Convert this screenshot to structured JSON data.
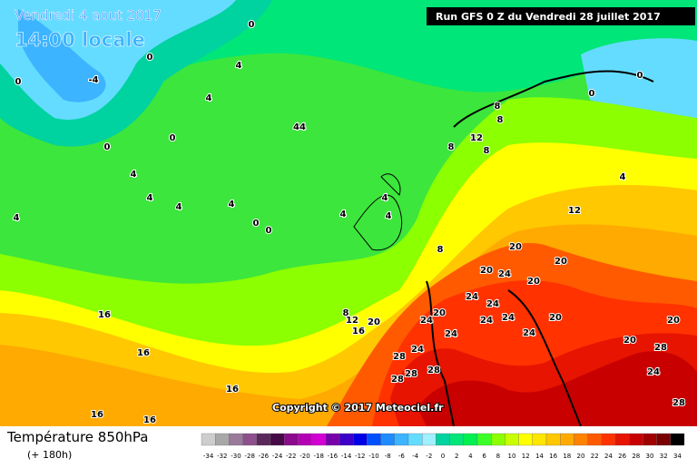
{
  "header": {
    "valid_date": "Vendredi 4 aout 2017",
    "local_time": "14:00 locale",
    "run": "Run GFS 0 Z du Vendredi 28 juillet 2017"
  },
  "copyright": "Copyright © 2017 Meteociel.fr",
  "footer": {
    "title": "Température 850hPa",
    "lead": "(+ 180h)"
  },
  "legend": {
    "values": [
      -34,
      -32,
      -30,
      -28,
      -26,
      -24,
      -22,
      -20,
      -18,
      -16,
      -14,
      -12,
      -10,
      -8,
      -6,
      -4,
      -2,
      0,
      2,
      4,
      6,
      8,
      10,
      12,
      14,
      16,
      18,
      20,
      22,
      24,
      26,
      28,
      30,
      32,
      34
    ],
    "colors": [
      "#cdcdcd",
      "#a8a8a8",
      "#9a7a9a",
      "#8c508c",
      "#5a285a",
      "#460a46",
      "#8c0a8c",
      "#b400b4",
      "#d200d2",
      "#7800aa",
      "#3c00c8",
      "#0000e6",
      "#0050ff",
      "#1e8cff",
      "#3cb4ff",
      "#64dcff",
      "#a0f0ff",
      "#00d2a0",
      "#00e678",
      "#00f050",
      "#3cff28",
      "#8cff00",
      "#c8ff00",
      "#ffff00",
      "#ffe600",
      "#ffc800",
      "#ffaa00",
      "#ff8200",
      "#ff5a00",
      "#ff3200",
      "#e61400",
      "#c80000",
      "#a00000",
      "#780000",
      "#000000"
    ]
  },
  "contour_labels": [
    0,
    0,
    4,
    -4,
    0,
    0,
    0,
    4,
    0,
    0,
    44,
    4,
    4,
    4,
    4,
    4,
    0,
    0,
    4,
    4,
    4,
    8,
    8,
    8,
    12,
    8,
    4,
    12,
    8,
    20,
    20,
    20,
    24,
    20,
    24,
    24,
    20,
    20,
    12,
    8,
    16,
    24,
    24,
    24,
    24,
    20,
    24,
    24,
    28,
    28,
    28,
    28,
    20,
    20,
    28,
    24,
    28,
    16,
    16,
    16,
    16,
    16
  ]
}
